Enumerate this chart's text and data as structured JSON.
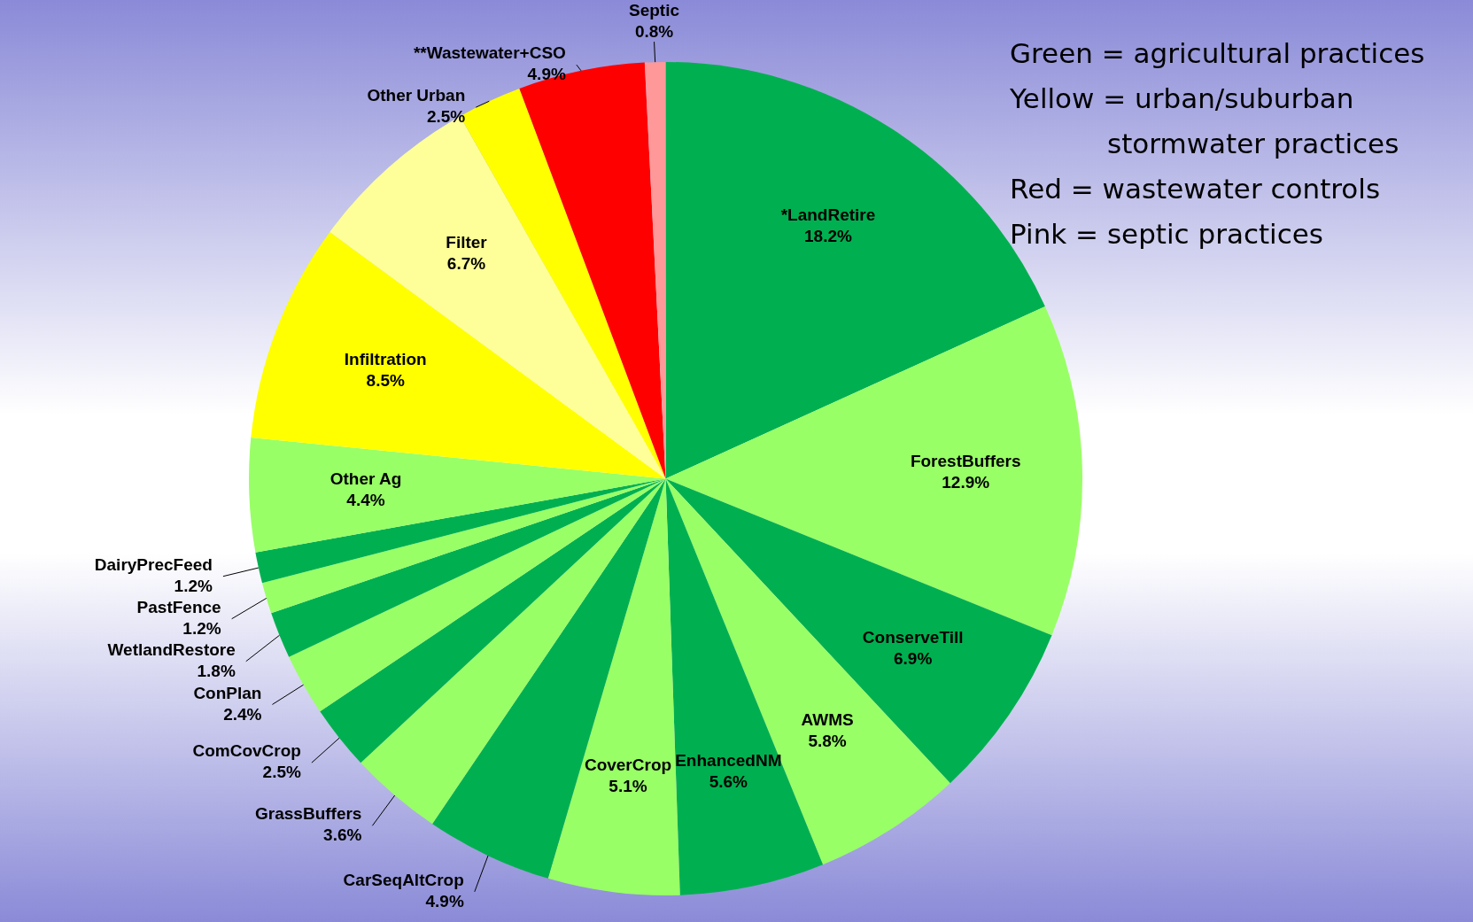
{
  "chart_data": {
    "type": "pie",
    "categories": [
      "*LandRetire",
      "ForestBuffers",
      "ConserveTill",
      "AWMS",
      "EnhancedNM",
      "CoverCrop",
      "CarSeqAltCrop",
      "GrassBuffers",
      "ComCovCrop",
      "ConPlan",
      "WetlandRestore",
      "PastFence",
      "DairyPrecFeed",
      "Other Ag",
      "Infiltration",
      "Filter",
      "Other Urban",
      "**Wastewater+CSO",
      "Septic"
    ],
    "values": [
      18.2,
      12.9,
      6.9,
      5.8,
      5.6,
      5.1,
      4.9,
      3.6,
      2.5,
      2.4,
      1.8,
      1.2,
      1.2,
      4.4,
      8.5,
      6.7,
      2.5,
      4.9,
      0.8
    ],
    "colors": [
      "#00b050",
      "#99ff66",
      "#00b050",
      "#99ff66",
      "#00b050",
      "#99ff66",
      "#00b050",
      "#99ff66",
      "#00b050",
      "#99ff66",
      "#00b050",
      "#99ff66",
      "#00b050",
      "#99ff66",
      "#ffff00",
      "#ffff99",
      "#ffff00",
      "#ff0000",
      "#ff9999"
    ],
    "value_labels": [
      "18.2%",
      "12.9%",
      "6.9%",
      "5.8%",
      "5.6%",
      "5.1%",
      "4.9%",
      "3.6%",
      "2.5%",
      "2.4%",
      "1.8%",
      "1.2%",
      "1.2%",
      "4.4%",
      "8.5%",
      "6.7%",
      "2.5%",
      "4.9%",
      "0.8%"
    ],
    "annotations": [
      "Green = agricultural practices",
      "Yellow = urban/suburban stormwater practices",
      "Red = wastewater controls",
      "Pink = septic practices"
    ]
  }
}
